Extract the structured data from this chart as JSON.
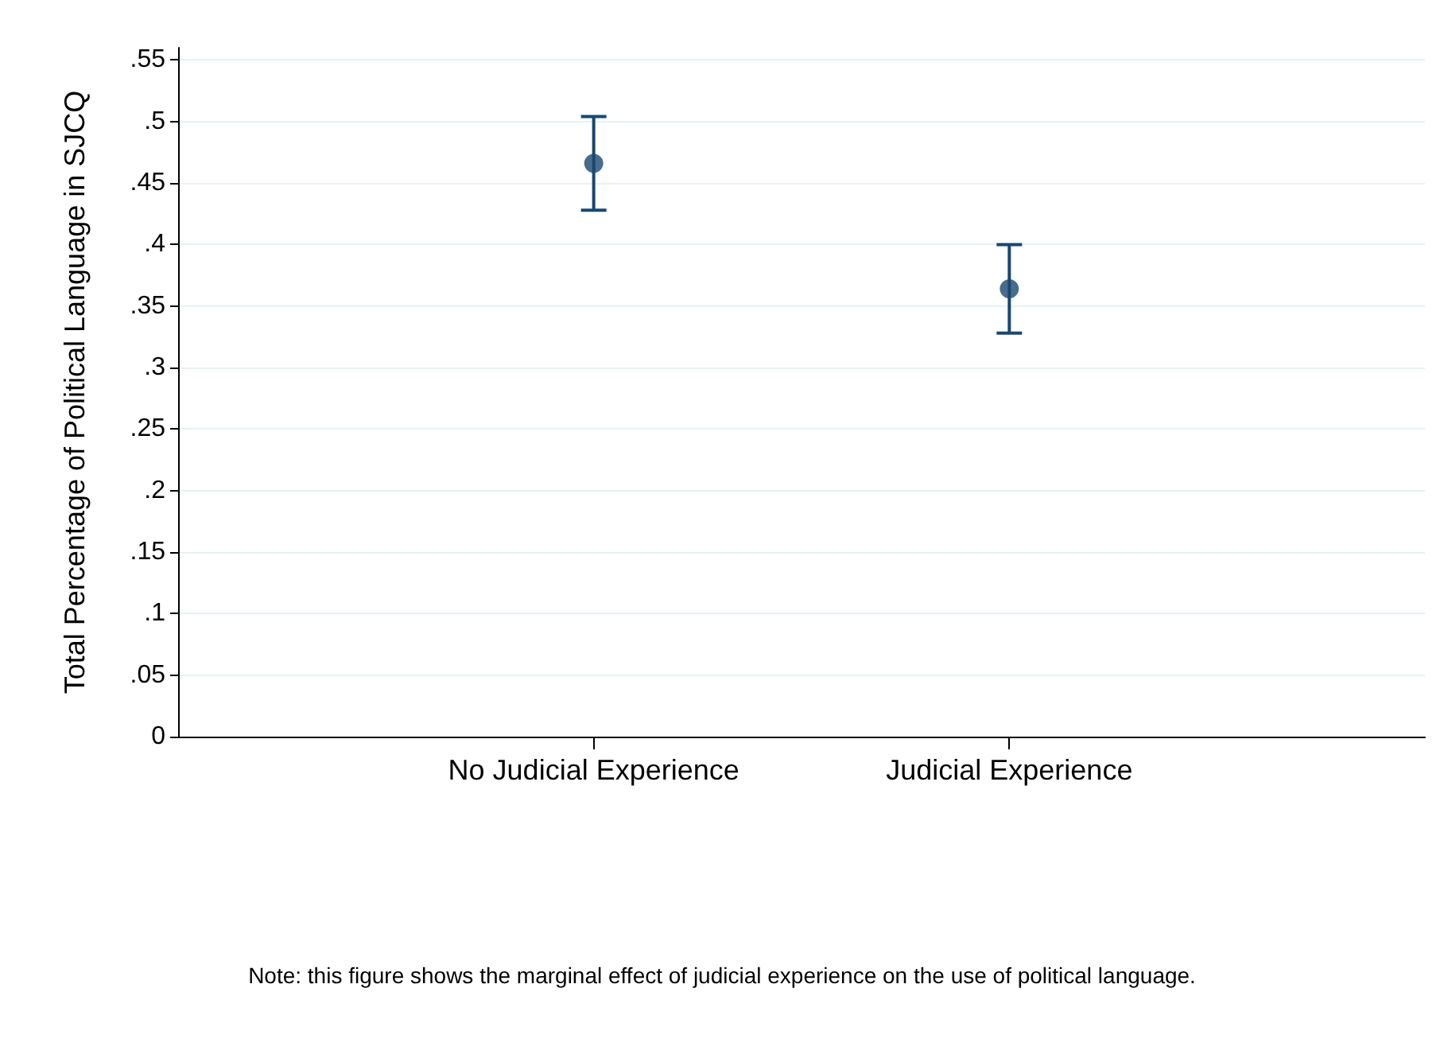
{
  "chart_data": {
    "type": "scatter",
    "ylabel": "Total Percentage of Political Language in SJCQ",
    "categories": [
      "No Judicial Experience",
      "Judicial Experience"
    ],
    "values": [
      0.466,
      0.364
    ],
    "errors": [
      [
        0.428,
        0.504
      ],
      [
        0.328,
        0.4
      ]
    ],
    "color": "#1a476f",
    "marker": "circle",
    "ylim": [
      0,
      0.56
    ],
    "yticks": [
      {
        "value": 0,
        "label": "0"
      },
      {
        "value": 0.05,
        "label": ".05"
      },
      {
        "value": 0.1,
        "label": ".1"
      },
      {
        "value": 0.15,
        "label": ".15"
      },
      {
        "value": 0.2,
        "label": ".2"
      },
      {
        "value": 0.25,
        "label": ".25"
      },
      {
        "value": 0.3,
        "label": ".3"
      },
      {
        "value": 0.35,
        "label": ".35"
      },
      {
        "value": 0.4,
        "label": ".4"
      },
      {
        "value": 0.45,
        "label": ".45"
      },
      {
        "value": 0.5,
        "label": ".5"
      },
      {
        "value": 0.55,
        "label": ".55"
      }
    ],
    "grid": "y",
    "annotations": [
      "Note: this figure shows the marginal effect of judicial experience on the use of political language."
    ]
  }
}
